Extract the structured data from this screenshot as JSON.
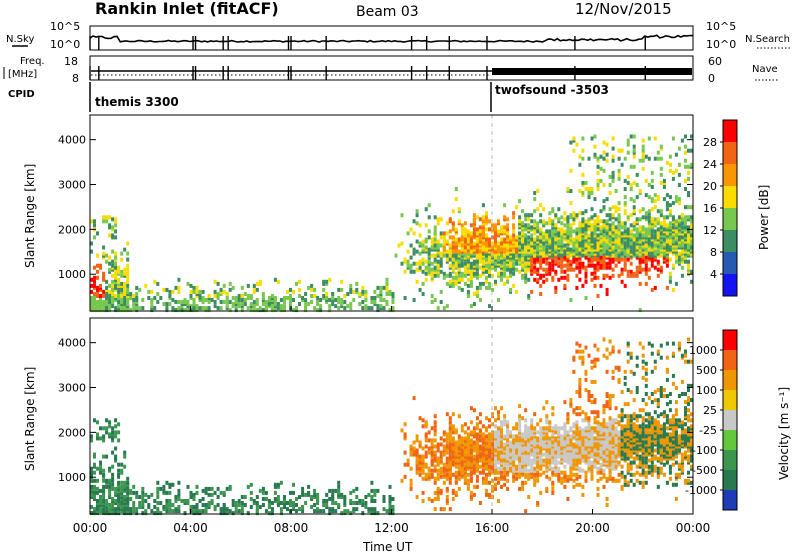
{
  "header": {
    "station": "Rankin Inlet (fitACF)",
    "beam": "Beam 03",
    "date": "12/Nov/2015"
  },
  "top_panels": {
    "nsky_label": "N.Sky",
    "nsky_ticks": [
      "10^5",
      "10^0"
    ],
    "nsearch_label": "N.Search",
    "nsearch_ticks": [
      "10^5",
      "10^0"
    ],
    "freq_label_1": "Freq.",
    "freq_label_2": "[MHz]",
    "freq_ticks": [
      "18",
      "8"
    ],
    "nave_label": "Nave",
    "nave_ticks": [
      "60",
      "0"
    ],
    "cpid_label": "CPID",
    "cpid_modes": [
      {
        "name": "themis 3300",
        "start_hour": 0
      },
      {
        "name": "twofsound -3503",
        "start_hour": 16
      }
    ]
  },
  "chart_data": [
    {
      "type": "heatmap",
      "name": "power",
      "ylabel": "Slant Range [km]",
      "yticks": [
        1000,
        2000,
        3000,
        4000
      ],
      "ylim": [
        180,
        4550
      ],
      "xlim": [
        0,
        24
      ],
      "colorbar": {
        "label": "Power [dB]",
        "ticks": [
          "4",
          "8",
          "12",
          "16",
          "20",
          "24",
          "28"
        ],
        "colors": [
          "#1414f0",
          "#285ab4",
          "#3c8c64",
          "#78c850",
          "#fadc00",
          "#fa9600",
          "#f06414",
          "#ff0000"
        ]
      }
    },
    {
      "type": "heatmap",
      "name": "velocity",
      "ylabel": "Slant Range [km]",
      "yticks": [
        1000,
        2000,
        3000,
        4000
      ],
      "ylim": [
        180,
        4550
      ],
      "xlim": [
        0,
        24
      ],
      "colorbar": {
        "label": "Velocity [m s⁻¹]",
        "ticks": [
          "1000",
          "500",
          "100",
          "25",
          "-25",
          "-100",
          "-500",
          "-1000"
        ],
        "colors": [
          "#1e3cb4",
          "#287850",
          "#3c9650",
          "#64c83c",
          "#c8c8c8",
          "#f0c800",
          "#f09600",
          "#f06414",
          "#ff0000"
        ]
      }
    }
  ],
  "time_axis": {
    "ticks": [
      "00:00",
      "04:00",
      "08:00",
      "12:00",
      "16:00",
      "20:00",
      "00:00"
    ],
    "label": "Time UT"
  }
}
